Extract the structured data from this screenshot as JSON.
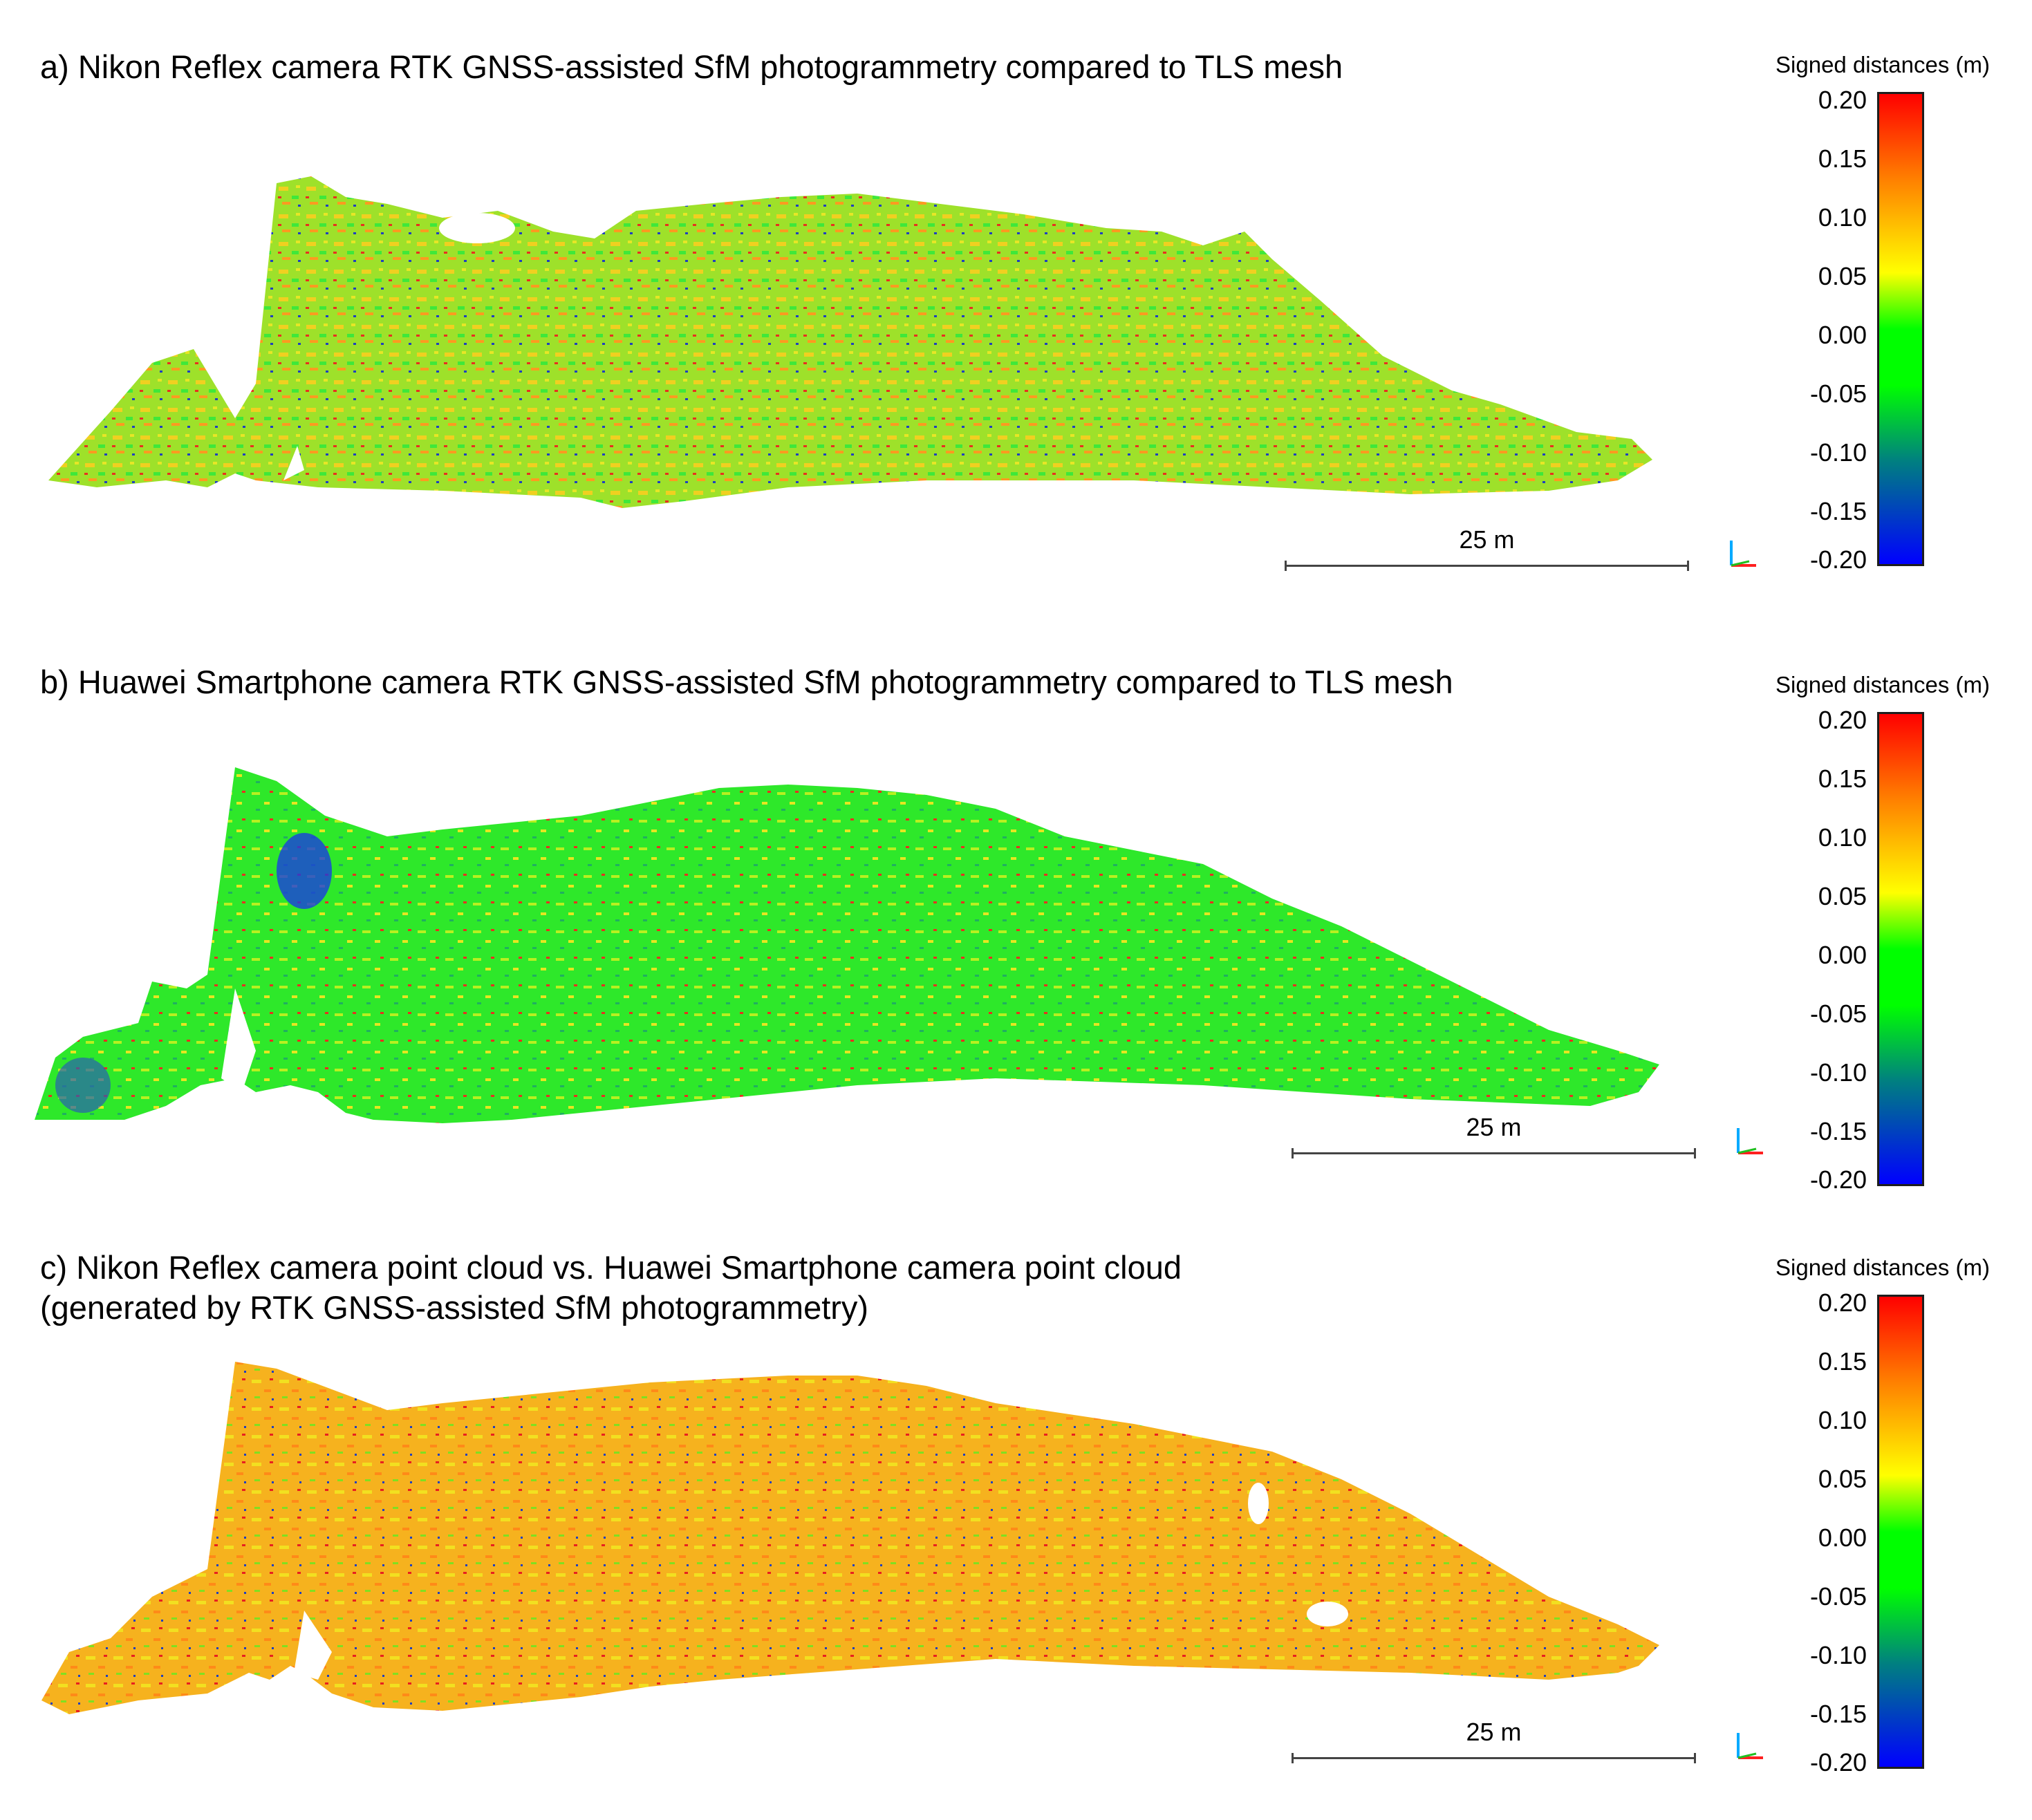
{
  "legend": {
    "title": "Signed distances (m)",
    "ticks": [
      "0.20",
      "0.15",
      "0.10",
      "0.05",
      "0.00",
      "-0.05",
      "-0.10",
      "-0.15",
      "-0.20"
    ],
    "range": [
      -0.2,
      0.2
    ],
    "colors": {
      "max": "#ff0000",
      "upper": "#ff7f00",
      "mid_upper": "#ffff00",
      "zero": "#00ff00",
      "lower": "#008080",
      "min": "#0000ff"
    }
  },
  "panels": [
    {
      "title": "a) Nikon Reflex camera RTK GNSS-assisted SfM photogrammetry compared to TLS mesh",
      "scale_label": "25 m",
      "dominant_color": "#8ee02a"
    },
    {
      "title": "b) Huawei Smartphone camera RTK GNSS-assisted SfM photogrammetry compared to TLS mesh",
      "scale_label": "25 m",
      "dominant_color": "#2ee82a"
    },
    {
      "title": "c) Nikon Reflex camera point cloud vs. Huawei Smartphone camera point cloud\n(generated by RTK GNSS-assisted SfM photogrammetry)",
      "scale_label": "25 m",
      "dominant_color": "#f6b21e"
    }
  ]
}
